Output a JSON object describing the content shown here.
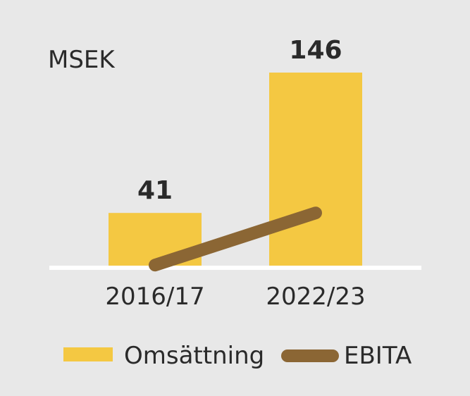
{
  "chart_data": {
    "type": "bar",
    "unit_label": "MSEK",
    "categories": [
      "2016/17",
      "2022/23"
    ],
    "series": [
      {
        "name": "Omsättning",
        "type": "bar",
        "values": [
          41,
          146
        ],
        "color": "#f4c842"
      },
      {
        "name": "EBITA",
        "type": "line",
        "values": [
          2,
          41
        ],
        "color": "#8b6634"
      }
    ],
    "data_labels": [
      "41",
      "146"
    ],
    "ylim": [
      0,
      146
    ],
    "grid": false,
    "baseline_color": "#ffffff",
    "legend": {
      "position": "bottom",
      "items": [
        {
          "label": "Omsättning",
          "color": "#f4c842",
          "shape": "bar"
        },
        {
          "label": "EBITA",
          "color": "#8b6634",
          "shape": "line"
        }
      ]
    }
  }
}
